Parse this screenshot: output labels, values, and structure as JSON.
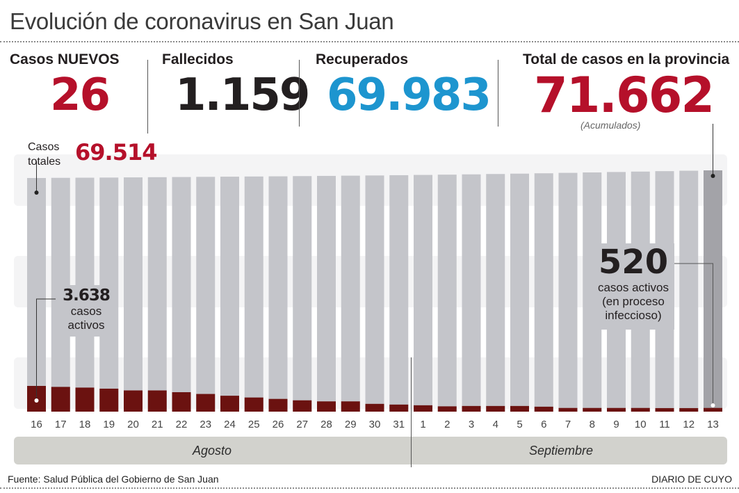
{
  "header": {
    "title": "Evolución de coronavirus en San Juan"
  },
  "kpis": {
    "new_cases": {
      "label": "Casos NUEVOS",
      "value": "26",
      "color": "#b5102a"
    },
    "deaths": {
      "label": "Fallecidos",
      "value": "1.159",
      "color": "#231f20"
    },
    "recovered": {
      "label": "Recuperados",
      "value": "69.983",
      "color": "#1d95cf"
    },
    "total": {
      "label": "Total de casos en la provincia",
      "value": "71.662",
      "note": "(Acumulados)",
      "color": "#b5102a"
    }
  },
  "annotations": {
    "total_start_label_1": "Casos",
    "total_start_label_2": "totales",
    "total_start_value": "69.514",
    "active_start_value": "3.638",
    "active_start_label_1": "casos",
    "active_start_label_2": "activos",
    "active_end_value": "520",
    "active_end_label_1": "casos activos",
    "active_end_label_2": "(en proceso",
    "active_end_label_3": "infeccioso)"
  },
  "chart_data": {
    "type": "bar",
    "title": "Evolución de coronavirus en San Juan",
    "xlabel": "",
    "ylabel": "",
    "categories": [
      "16",
      "17",
      "18",
      "19",
      "20",
      "21",
      "22",
      "23",
      "24",
      "25",
      "26",
      "27",
      "28",
      "29",
      "30",
      "31",
      "1",
      "2",
      "3",
      "4",
      "5",
      "6",
      "7",
      "8",
      "9",
      "10",
      "11",
      "12",
      "13"
    ],
    "months": [
      {
        "name": "Agosto",
        "from": "16",
        "to": "31"
      },
      {
        "name": "Septiembre",
        "from": "1",
        "to": "13"
      }
    ],
    "series": [
      {
        "name": "Casos totales",
        "color": "#c4c5ca",
        "highlight_color": "#a3a3a8",
        "values": [
          69514,
          69560,
          69600,
          69640,
          69690,
          69740,
          69790,
          69840,
          69890,
          69940,
          69990,
          70050,
          70110,
          70170,
          70230,
          70300,
          70380,
          70460,
          70540,
          70640,
          70740,
          70840,
          70960,
          71080,
          71200,
          71320,
          71440,
          71560,
          71662
        ]
      },
      {
        "name": "Casos activos",
        "color": "#6b1210",
        "values": [
          3638,
          3500,
          3400,
          3250,
          3000,
          3000,
          2750,
          2500,
          2250,
          2000,
          1800,
          1600,
          1450,
          1450,
          1100,
          1000,
          900,
          750,
          800,
          800,
          800,
          700,
          520,
          520,
          520,
          520,
          500,
          500,
          520
        ]
      }
    ],
    "ylim": [
      0,
      72000
    ],
    "grid": false,
    "legend": "none"
  },
  "footer": {
    "source": "Fuente: Salud Pública del Gobierno de San Juan",
    "brand": "DIARIO DE CUYO"
  }
}
